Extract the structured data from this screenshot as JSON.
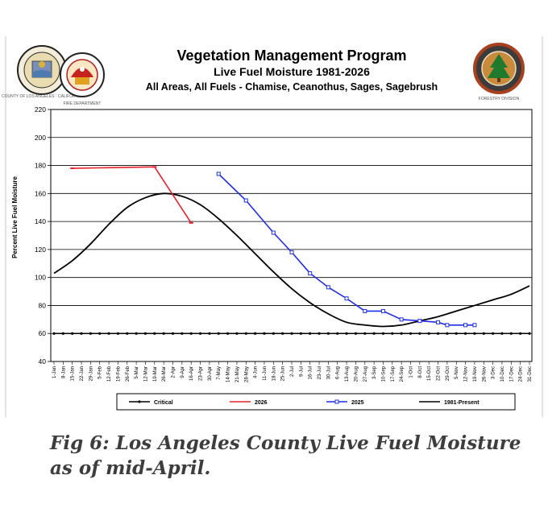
{
  "header": {
    "title": "Vegetation Management Program",
    "subtitle": "Live Fuel Moisture 1981-2026",
    "areas": "All Areas, All Fuels - Chamise, Ceanothus, Sages, Sagebrush",
    "seal_left_text": "COUNTY OF LOS ANGELES · CALIFORNIA",
    "seal_fire_text": "FIRE DEPARTMENT",
    "seal_right_text": "FORESTRY DIVISION"
  },
  "caption": "Fig 6: Los Angeles County Live Fuel Moisture as of mid-April.",
  "chart_data": {
    "type": "line",
    "title": "Vegetation Management Program",
    "ylabel": "Percent Live Fuel Moisture",
    "xlabel": "",
    "ylim": [
      40,
      220
    ],
    "yticks": [
      40,
      60,
      80,
      100,
      120,
      140,
      160,
      180,
      200,
      220
    ],
    "grid": true,
    "legend_position": "bottom",
    "categories": [
      "1-Jan",
      "8-Jan",
      "15-Jan",
      "22-Jan",
      "29-Jan",
      "5-Feb",
      "12-Feb",
      "19-Feb",
      "26-Feb",
      "5-Mar",
      "12-Mar",
      "19-Mar",
      "26-Mar",
      "2-Apr",
      "9-Apr",
      "16-Apr",
      "23-Apr",
      "30-Apr",
      "7-May",
      "14-May",
      "21-May",
      "28-May",
      "4-Jun",
      "11-Jun",
      "18-Jun",
      "25-Jun",
      "2-Jul",
      "9-Jul",
      "16-Jul",
      "23-Jul",
      "30-Jul",
      "6-Aug",
      "13-Aug",
      "20-Aug",
      "27-Aug",
      "3-Sep",
      "10-Sep",
      "17-Sep",
      "24-Sep",
      "1-Oct",
      "8-Oct",
      "15-Oct",
      "22-Oct",
      "29-Oct",
      "5-Nov",
      "12-Nov",
      "19-Nov",
      "26-Nov",
      "3-Dec",
      "10-Dec",
      "17-Dec",
      "24-Dec",
      "31-Dec"
    ],
    "series": [
      {
        "name": "Critical",
        "color": "#000000",
        "style": "dotted-markers",
        "points": [
          [
            "1-Jan",
            60
          ],
          [
            "8-Jan",
            60
          ],
          [
            "15-Jan",
            60
          ],
          [
            "22-Jan",
            60
          ],
          [
            "29-Jan",
            60
          ],
          [
            "5-Feb",
            60
          ],
          [
            "12-Feb",
            60
          ],
          [
            "19-Feb",
            60
          ],
          [
            "26-Feb",
            60
          ],
          [
            "5-Mar",
            60
          ],
          [
            "12-Mar",
            60
          ],
          [
            "19-Mar",
            60
          ],
          [
            "26-Mar",
            60
          ],
          [
            "2-Apr",
            60
          ],
          [
            "9-Apr",
            60
          ],
          [
            "16-Apr",
            60
          ],
          [
            "23-Apr",
            60
          ],
          [
            "30-Apr",
            60
          ],
          [
            "7-May",
            60
          ],
          [
            "14-May",
            60
          ],
          [
            "21-May",
            60
          ],
          [
            "28-May",
            60
          ],
          [
            "4-Jun",
            60
          ],
          [
            "11-Jun",
            60
          ],
          [
            "18-Jun",
            60
          ],
          [
            "25-Jun",
            60
          ],
          [
            "2-Jul",
            60
          ],
          [
            "9-Jul",
            60
          ],
          [
            "16-Jul",
            60
          ],
          [
            "23-Jul",
            60
          ],
          [
            "30-Jul",
            60
          ],
          [
            "6-Aug",
            60
          ],
          [
            "13-Aug",
            60
          ],
          [
            "20-Aug",
            60
          ],
          [
            "27-Aug",
            60
          ],
          [
            "3-Sep",
            60
          ],
          [
            "10-Sep",
            60
          ],
          [
            "17-Sep",
            60
          ],
          [
            "24-Sep",
            60
          ],
          [
            "1-Oct",
            60
          ],
          [
            "8-Oct",
            60
          ],
          [
            "15-Oct",
            60
          ],
          [
            "22-Oct",
            60
          ],
          [
            "29-Oct",
            60
          ],
          [
            "5-Nov",
            60
          ],
          [
            "12-Nov",
            60
          ],
          [
            "19-Nov",
            60
          ],
          [
            "26-Nov",
            60
          ],
          [
            "3-Dec",
            60
          ],
          [
            "10-Dec",
            60
          ],
          [
            "17-Dec",
            60
          ],
          [
            "24-Dec",
            60
          ],
          [
            "31-Dec",
            60
          ]
        ]
      },
      {
        "name": "2026",
        "color": "#e8202a",
        "style": "line-markers",
        "points": [
          [
            "15-Jan",
            178
          ],
          [
            "19-Mar",
            179
          ],
          [
            "16-Apr",
            139
          ]
        ]
      },
      {
        "name": "2025",
        "color": "#1f2ee6",
        "style": "line-markers",
        "points": [
          [
            "7-May",
            174
          ],
          [
            "28-May",
            155
          ],
          [
            "18-Jun",
            132
          ],
          [
            "2-Jul",
            118
          ],
          [
            "16-Jul",
            103
          ],
          [
            "30-Jul",
            93
          ],
          [
            "13-Aug",
            85
          ],
          [
            "27-Aug",
            76
          ],
          [
            "10-Sep",
            76
          ],
          [
            "24-Sep",
            70
          ],
          [
            "8-Oct",
            69
          ],
          [
            "22-Oct",
            68
          ],
          [
            "29-Oct",
            66
          ],
          [
            "12-Nov",
            66
          ],
          [
            "19-Nov",
            66
          ]
        ]
      },
      {
        "name": "1981-Present",
        "color": "#000000",
        "style": "smooth",
        "points": [
          [
            "1-Jan",
            103
          ],
          [
            "15-Jan",
            112
          ],
          [
            "29-Jan",
            124
          ],
          [
            "12-Feb",
            138
          ],
          [
            "26-Feb",
            150
          ],
          [
            "12-Mar",
            157
          ],
          [
            "26-Mar",
            160
          ],
          [
            "9-Apr",
            158
          ],
          [
            "23-Apr",
            152
          ],
          [
            "7-May",
            142
          ],
          [
            "21-May",
            130
          ],
          [
            "4-Jun",
            117
          ],
          [
            "18-Jun",
            104
          ],
          [
            "2-Jul",
            92
          ],
          [
            "16-Jul",
            82
          ],
          [
            "30-Jul",
            74
          ],
          [
            "13-Aug",
            68
          ],
          [
            "27-Aug",
            66
          ],
          [
            "10-Sep",
            65
          ],
          [
            "24-Sep",
            66
          ],
          [
            "8-Oct",
            69
          ],
          [
            "22-Oct",
            72
          ],
          [
            "5-Nov",
            76
          ],
          [
            "19-Nov",
            80
          ],
          [
            "3-Dec",
            84
          ],
          [
            "17-Dec",
            88
          ],
          [
            "31-Dec",
            94
          ]
        ]
      }
    ]
  }
}
